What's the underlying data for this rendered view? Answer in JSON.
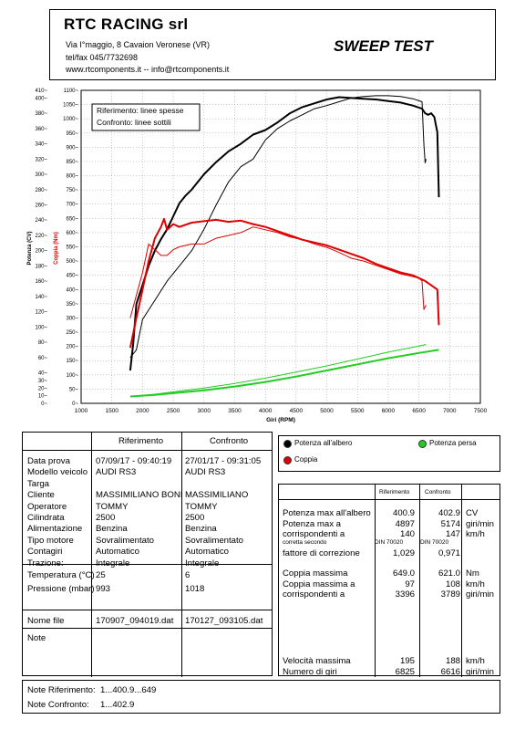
{
  "header": {
    "company": "RTC RACING srl",
    "address": "Via I°maggio, 8 Cavaion Veronese (VR)",
    "phone": "tel/fax 045/7732698",
    "web": "www.rtcomponents.it  -- info@rtcomponents.it",
    "report_title": "SWEEP TEST"
  },
  "chart_data": {
    "type": "line",
    "xlabel": "Giri (RPM)",
    "ylabel_power": "Potenza (CV)",
    "ylabel_torque": "Coppia (Nm)",
    "annotation": [
      "Riferimento: linee spesse",
      "Confronto: linee sottili"
    ],
    "x_ticks": [
      "1000",
      "1500",
      "2000",
      "2500",
      "3000",
      "3500",
      "4000",
      "4500",
      "5000",
      "5500",
      "6000",
      "6500",
      "7000",
      "7500"
    ],
    "xlim": [
      1000,
      7500
    ],
    "power_ticks": [
      "0",
      "10",
      "20",
      "30",
      "40",
      "60",
      "80",
      "100",
      "120",
      "140",
      "160",
      "180",
      "200",
      "220",
      "240",
      "260",
      "280",
      "300",
      "320",
      "340",
      "360",
      "380",
      "400",
      "410"
    ],
    "power_lim": [
      0,
      410
    ],
    "torque_ticks": [
      "0",
      "50",
      "100",
      "150",
      "200",
      "250",
      "300",
      "350",
      "400",
      "450",
      "500",
      "550",
      "600",
      "650",
      "700",
      "750",
      "800",
      "850",
      "900",
      "950",
      "1000",
      "1050",
      "1100"
    ],
    "torque_lim": [
      0,
      1100
    ],
    "series": [
      {
        "name": "Potenza all'albero",
        "group": "Riferimento",
        "axis": "power",
        "color": "#000000",
        "width": 2,
        "x": [
          1800,
          1850,
          1900,
          2000,
          2100,
          2200,
          2300,
          2400,
          2500,
          2600,
          2700,
          2800,
          3000,
          3200,
          3400,
          3600,
          3800,
          4000,
          4200,
          4400,
          4600,
          4800,
          5000,
          5200,
          5400,
          5600,
          5800,
          6000,
          6200,
          6400,
          6550,
          6600,
          6650,
          6700,
          6750,
          6800,
          6825
        ],
        "y": [
          43,
          80,
          130,
          155,
          180,
          200,
          215,
          228,
          245,
          262,
          272,
          280,
          300,
          316,
          330,
          340,
          352,
          358,
          368,
          380,
          388,
          393,
          398,
          401,
          400,
          399,
          398,
          396,
          394,
          390,
          386,
          380,
          378,
          380,
          375,
          355,
          270
        ]
      },
      {
        "name": "Potenza all'albero",
        "group": "Confronto",
        "axis": "power",
        "color": "#000000",
        "width": 1,
        "x": [
          1800,
          1900,
          2000,
          2200,
          2400,
          2600,
          2800,
          3000,
          3200,
          3400,
          3600,
          3800,
          4000,
          4200,
          4400,
          4600,
          4800,
          5000,
          5200,
          5400,
          5600,
          5800,
          6000,
          6200,
          6400,
          6550,
          6580,
          6600,
          6616
        ],
        "y": [
          60,
          70,
          110,
          135,
          160,
          180,
          200,
          228,
          260,
          290,
          310,
          320,
          345,
          360,
          370,
          378,
          386,
          390,
          395,
          400,
          402,
          403,
          403,
          402,
          399,
          395,
          340,
          315,
          320
        ]
      },
      {
        "name": "Coppia",
        "group": "Riferimento",
        "axis": "torque",
        "color": "#dd0000",
        "width": 2,
        "x": [
          1800,
          1900,
          2000,
          2100,
          2200,
          2300,
          2350,
          2400,
          2500,
          2600,
          2800,
          3000,
          3200,
          3400,
          3600,
          3800,
          4000,
          4200,
          4400,
          4600,
          4800,
          5000,
          5200,
          5400,
          5600,
          5800,
          6000,
          6200,
          6400,
          6600,
          6800,
          6825
        ],
        "y": [
          195,
          300,
          400,
          500,
          580,
          620,
          648,
          610,
          630,
          620,
          635,
          640,
          645,
          638,
          642,
          630,
          620,
          605,
          590,
          575,
          565,
          555,
          540,
          525,
          510,
          490,
          475,
          460,
          450,
          430,
          400,
          275
        ]
      },
      {
        "name": "Coppia",
        "group": "Confronto",
        "axis": "torque",
        "color": "#dd0000",
        "width": 1,
        "x": [
          1800,
          1900,
          2000,
          2100,
          2200,
          2300,
          2400,
          2500,
          2600,
          2800,
          3000,
          3200,
          3400,
          3600,
          3800,
          4000,
          4200,
          4400,
          4600,
          4800,
          5000,
          5200,
          5400,
          5600,
          5800,
          6000,
          6200,
          6400,
          6500,
          6550,
          6580,
          6616
        ],
        "y": [
          300,
          380,
          460,
          560,
          540,
          520,
          520,
          540,
          550,
          560,
          560,
          580,
          590,
          600,
          620,
          610,
          600,
          585,
          575,
          560,
          548,
          530,
          510,
          500,
          485,
          470,
          455,
          445,
          440,
          430,
          330,
          345
        ]
      },
      {
        "name": "Potenza persa",
        "group": "Riferimento",
        "axis": "power",
        "color": "#22cc22",
        "width": 2,
        "x": [
          1800,
          2200,
          2600,
          3000,
          3500,
          4000,
          4500,
          5000,
          5500,
          6000,
          6500,
          6825
        ],
        "y": [
          9,
          11,
          14,
          17,
          22,
          28,
          35,
          43,
          51,
          59,
          66,
          70
        ]
      },
      {
        "name": "Potenza persa",
        "group": "Confronto",
        "axis": "power",
        "color": "#22cc22",
        "width": 1,
        "x": [
          1800,
          2200,
          2600,
          3000,
          3500,
          4000,
          4500,
          5000,
          5500,
          6000,
          6500,
          6616
        ],
        "y": [
          9,
          12,
          16,
          20,
          26,
          33,
          41,
          49,
          58,
          67,
          75,
          77
        ]
      }
    ]
  },
  "info_table": {
    "col_headers": [
      "Riferimento",
      "Confronto"
    ],
    "rows": [
      {
        "label": "Data prova",
        "ref": "07/09/17 - 09:40:19",
        "cmp": "27/01/17 - 09:31:05"
      },
      {
        "label": "Modello veicolo",
        "ref": "AUDI RS3",
        "cmp": "AUDI RS3"
      },
      {
        "label": "Targa",
        "ref": "",
        "cmp": ""
      },
      {
        "label": "Cliente",
        "ref": "MASSIMILIANO BONI",
        "cmp": "MASSIMILIANO"
      },
      {
        "label": "Operatore",
        "ref": "TOMMY",
        "cmp": "TOMMY"
      },
      {
        "label": "Cilindrata",
        "ref": "2500",
        "cmp": "2500"
      },
      {
        "label": "Alimentazione",
        "ref": "Benzina",
        "cmp": "Benzina"
      },
      {
        "label": "Tipo motore",
        "ref": "Sovralimentato",
        "cmp": "Sovralimentato"
      },
      {
        "label": "Contagiri",
        "ref": "Automatico",
        "cmp": "Automatico"
      },
      {
        "label": "Trazione:",
        "ref": "Integrale",
        "cmp": "Integrale"
      }
    ],
    "env_rows": [
      {
        "label": "Temperatura (°C)",
        "ref": "25",
        "cmp": "6"
      },
      {
        "label": "Pressione (mbar)",
        "ref": "993",
        "cmp": "1018"
      }
    ],
    "file_label": "Nome file",
    "file_ref": "170907_094019.dat",
    "file_cmp": "170127_093105.dat",
    "note_label": "Note"
  },
  "legend": {
    "items": [
      {
        "label": "Potenza all'albero",
        "color": "#000000"
      },
      {
        "label": "Potenza persa",
        "color": "#22cc22"
      },
      {
        "label": "Coppia",
        "color": "#dd0000"
      }
    ]
  },
  "results": {
    "col_headers": [
      "Riferimento",
      "Confronto"
    ],
    "power_block": [
      {
        "label": "Potenza max all'albero",
        "ref": "400.9",
        "cmp": "402.9",
        "unit": "CV"
      },
      {
        "label": "Potenza max a",
        "ref": "4897",
        "cmp": "5174",
        "unit": "giri/min"
      },
      {
        "label": "corrispondenti a",
        "ref": "140",
        "cmp": "147",
        "unit": "km/h"
      }
    ],
    "corr_label": "corretta secondo",
    "corr_ref": "DIN 70020",
    "corr_cmp": "DIN 70020",
    "factor": {
      "label": "fattore di correzione",
      "ref": "1,029",
      "cmp": "0,971"
    },
    "torque_block": [
      {
        "label": "Coppia massima",
        "ref": "649.0",
        "cmp": "621.0",
        "unit": "Nm"
      },
      {
        "label": "Coppia massima a",
        "ref": "97",
        "cmp": "108",
        "unit": "km/h"
      },
      {
        "label": "corrispondenti a",
        "ref": "3396",
        "cmp": "3789",
        "unit": "giri/min"
      }
    ],
    "speed_block": [
      {
        "label": "Velocità massima",
        "ref": "195",
        "cmp": "188",
        "unit": "km/h"
      },
      {
        "label": "Numero di giri",
        "ref": "6825",
        "cmp": "6616",
        "unit": "giri/min"
      }
    ]
  },
  "notes": {
    "ref_label": "Note Riferimento:",
    "ref_value": "1...400.9...649",
    "cmp_label": "Note Confronto:",
    "cmp_value": "1...402.9"
  }
}
